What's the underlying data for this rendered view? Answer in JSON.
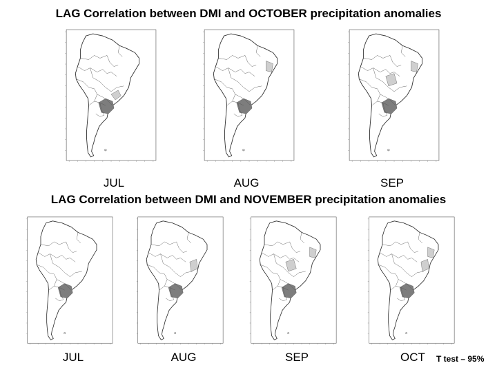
{
  "rows": [
    {
      "title": "LAG Correlation between DMI and OCTOBER precipitation anomalies",
      "panels": [
        {
          "label": "JUL",
          "shading": [
            "south-brazil-dark",
            "southeast-light"
          ]
        },
        {
          "label": "AUG",
          "shading": [
            "south-brazil-dark",
            "northeast-light"
          ]
        },
        {
          "label": "SEP",
          "shading": [
            "south-brazil-dark",
            "northeast-light",
            "central-light"
          ]
        }
      ]
    },
    {
      "title": "LAG Correlation between DMI and NOVEMBER precipitation anomalies",
      "panels": [
        {
          "label": "JUL",
          "shading": [
            "south-brazil-dark"
          ]
        },
        {
          "label": "AUG",
          "shading": [
            "south-brazil-dark",
            "east-light"
          ]
        },
        {
          "label": "SEP",
          "shading": [
            "south-brazil-dark",
            "northeast-light",
            "central-light"
          ]
        },
        {
          "label": "OCT",
          "shading": [
            "south-brazil-dark",
            "northeast-light",
            "east-light"
          ]
        }
      ]
    }
  ],
  "legend": {
    "ttest": "T test – 95%"
  },
  "colors": {
    "dark_shade": "#7d7d7d",
    "light_shade": "#cfcfcf",
    "coast": "#333333"
  }
}
